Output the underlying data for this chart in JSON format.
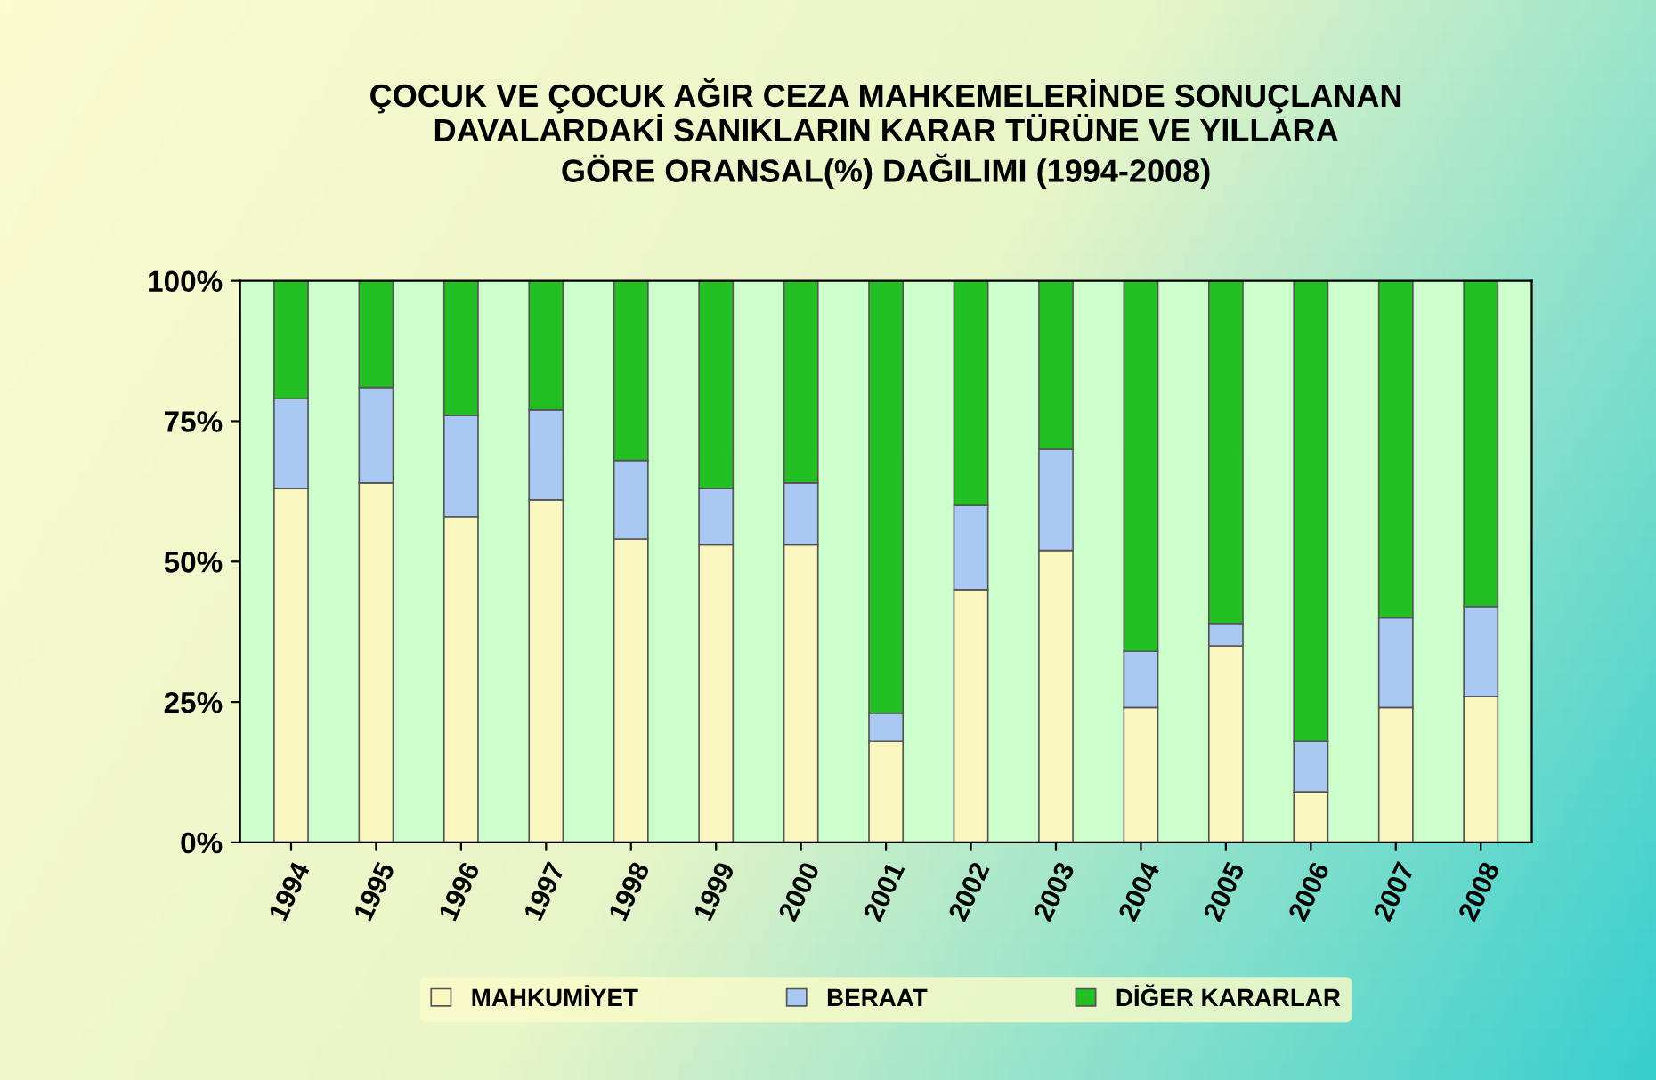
{
  "chart_data": {
    "type": "bar",
    "stacked": true,
    "title": "ÇOCUK VE ÇOCUK AĞIR CEZA MAHKEMELERİNDE SONUÇLANAN\nDAVALARDAKİ SANIKLARIN KARAR TÜRÜNE VE YILLARA\nGÖRE ORANSAL(%) DAĞILIMI (1994-2008)",
    "categories": [
      "1994",
      "1995",
      "1996",
      "1997",
      "1998",
      "1999",
      "2000",
      "2001",
      "2002",
      "2003",
      "2004",
      "2005",
      "2006",
      "2007",
      "2008"
    ],
    "series": [
      {
        "name": "MAHKUMİYET",
        "color": "#faf6c0",
        "values": [
          63,
          64,
          58,
          61,
          54,
          53,
          53,
          18,
          45,
          52,
          24,
          35,
          9,
          24,
          26
        ]
      },
      {
        "name": "BERAAT",
        "color": "#a9c8f2",
        "values": [
          16,
          17,
          18,
          16,
          14,
          10,
          11,
          5,
          15,
          18,
          10,
          4,
          9,
          16,
          16
        ]
      },
      {
        "name": "DİĞER KARARLAR",
        "color": "#22c022",
        "values": [
          21,
          19,
          24,
          23,
          32,
          37,
          36,
          77,
          40,
          30,
          66,
          61,
          82,
          60,
          58
        ]
      }
    ],
    "ylim": [
      0,
      100
    ],
    "yticks": [
      {
        "value": 0,
        "label": "0%"
      },
      {
        "value": 25,
        "label": "25%"
      },
      {
        "value": 50,
        "label": "50%"
      },
      {
        "value": 75,
        "label": "75%"
      },
      {
        "value": 100,
        "label": "100%"
      }
    ],
    "grid": false,
    "legend": "bottom"
  }
}
